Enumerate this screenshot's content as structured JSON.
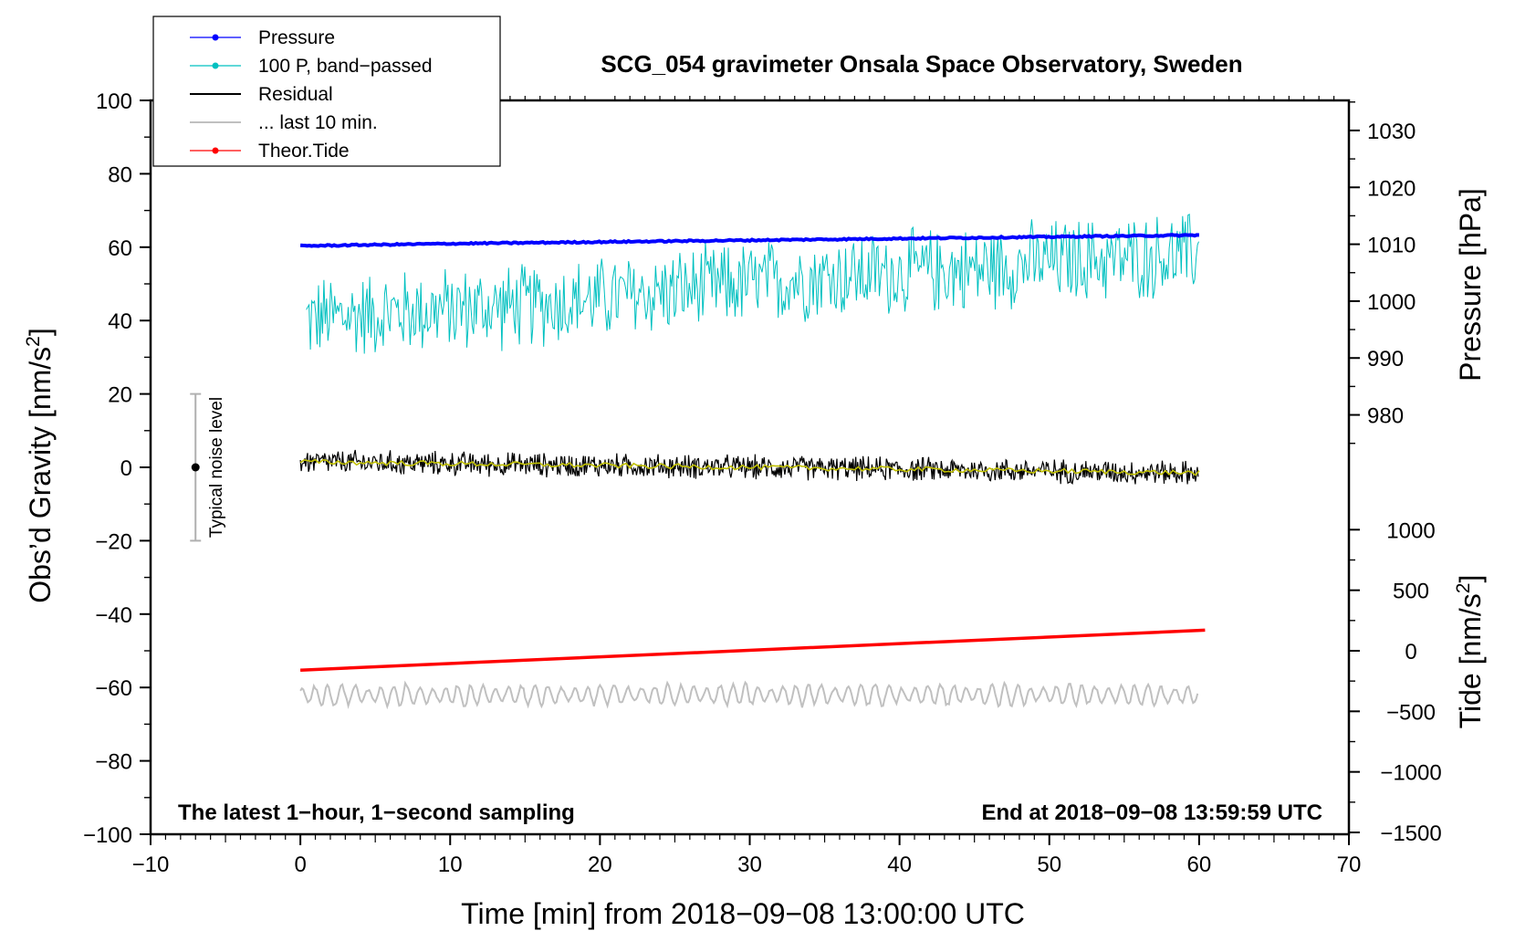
{
  "chart_data": {
    "type": "line",
    "title": "SCG_054 gravimeter Onsala Space Observatory, Sweden",
    "xlabel": "Time [min] from 2018−09−08 13:00:00 UTC",
    "ylabel": "Obs’d Gravity [nm/s²]",
    "ylabel_parts": {
      "base": "Obs’d Gravity [nm/s",
      "sup": "2",
      "close": "]"
    },
    "xlim": [
      -10,
      70
    ],
    "ylim": [
      -100,
      100
    ],
    "x_ticks": [
      -10,
      0,
      10,
      20,
      30,
      40,
      50,
      60,
      70
    ],
    "x_tick_labels": [
      "−10",
      "0",
      "10",
      "20",
      "30",
      "40",
      "50",
      "60",
      "70"
    ],
    "y_ticks": [
      -100,
      -80,
      -60,
      -40,
      -20,
      0,
      20,
      40,
      60,
      80,
      100
    ],
    "y_tick_labels": [
      "−100",
      "−80",
      "−60",
      "−40",
      "−20",
      "0",
      "20",
      "40",
      "60",
      "80",
      "100"
    ],
    "right_axes": {
      "pressure": {
        "label": "Pressure [hPa]",
        "ticks": [
          980,
          990,
          1000,
          1010,
          1020,
          1030
        ],
        "tick_labels": [
          "980",
          "990",
          "1000",
          "1010",
          "1020",
          "1030"
        ],
        "map_left_y_at_1010": 60.8,
        "hpa_per_gravity_unit": 0.645
      },
      "tide": {
        "label_parts": {
          "base": "Tide [nm/s",
          "sup": "2",
          "close": "]"
        },
        "ticks": [
          -1500,
          -1000,
          -500,
          0,
          500,
          1000
        ],
        "tick_labels": [
          "−1500",
          "−1000",
          "−500",
          "0",
          "500",
          "1000"
        ],
        "map_left_y_at_0": -50,
        "tide_per_gravity_unit": 30.3
      }
    },
    "series": [
      {
        "name": "Pressure",
        "color": "#0000ff",
        "x": [
          0,
          10,
          20,
          30,
          40,
          50,
          60
        ],
        "values": [
          1009.7,
          1010.1,
          1010.4,
          1010.7,
          1011.0,
          1011.3,
          1011.6
        ],
        "axis": "pressure"
      },
      {
        "name": "100 P, band−passed",
        "color": "#00c0c0",
        "x": [
          0,
          5,
          10,
          15,
          20,
          25,
          30,
          35,
          40,
          45,
          50,
          55,
          60
        ],
        "values": [
          40,
          42,
          43,
          44,
          46,
          48,
          50,
          52,
          53,
          54,
          56,
          57,
          58
        ],
        "approx_band": 12,
        "axis": "gravity"
      },
      {
        "name": "Residual",
        "color": "#000000",
        "x": [
          0,
          10,
          20,
          30,
          40,
          50,
          60
        ],
        "values": [
          1.5,
          1.0,
          0.5,
          0.0,
          -0.5,
          -1.0,
          -1.5
        ],
        "approx_band": 3.5,
        "axis": "gravity"
      },
      {
        "name": "... last 10 min.",
        "color": "#c0c0c0",
        "x": [
          0,
          10,
          20,
          30,
          40,
          50,
          60
        ],
        "values": [
          -62,
          -62,
          -62,
          -62,
          -62,
          -62,
          -62
        ],
        "approx_band": 3,
        "axis": "gravity"
      },
      {
        "name": "Theor.Tide",
        "color": "#ff0000",
        "x": [
          0,
          60.4
        ],
        "values": [
          -160,
          170
        ],
        "axis": "tide"
      },
      {
        "name": "Residual (smoothed)",
        "color": "#c0c000",
        "x": [
          0,
          10,
          20,
          30,
          40,
          50,
          60
        ],
        "values": [
          1.5,
          1.0,
          0.5,
          0.0,
          -0.5,
          -1.0,
          -1.5
        ],
        "axis": "gravity",
        "legend": false
      }
    ],
    "noise_indicator": {
      "label": "Typical noise level",
      "x": -7,
      "center": 0,
      "low": -20,
      "high": 20
    },
    "annotations": {
      "left": "The latest 1−hour, 1−second sampling",
      "right": "End at 2018−09−08 13:59:59 UTC"
    },
    "legend": {
      "placement": "top-left",
      "entries": [
        {
          "label": "Pressure",
          "color": "#0000ff",
          "marker": true
        },
        {
          "label": "100 P, band−passed",
          "color": "#00c0c0",
          "marker": true
        },
        {
          "label": "Residual",
          "color": "#000000",
          "marker": false
        },
        {
          "label": "... last 10 min.",
          "color": "#c0c0c0",
          "marker": false
        },
        {
          "label": "Theor.Tide",
          "color": "#ff0000",
          "marker": true
        }
      ]
    },
    "grid": false
  }
}
